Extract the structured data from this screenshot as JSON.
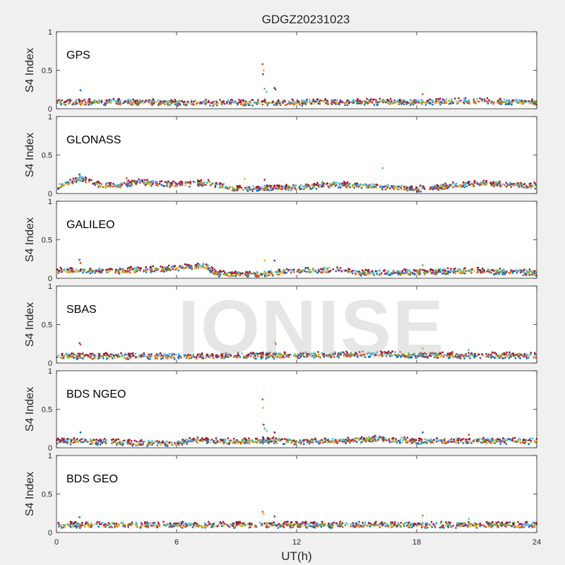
{
  "figure": {
    "title": "GDGZ20231023",
    "xlabel": "UT(h)",
    "ylabel": "S4 Index",
    "watermark": "IONISE"
  },
  "colors": {
    "background": "#f0f0f0",
    "axes_bg": "#ffffff",
    "series": [
      "#0072BD",
      "#D95319",
      "#EDB120",
      "#7E2F8E",
      "#77AC30",
      "#4DBEEE",
      "#A2142F"
    ]
  },
  "chart_data": [
    {
      "type": "scatter",
      "panel_label": "GPS",
      "xlim": [
        0,
        24
      ],
      "ylim": [
        0,
        1
      ],
      "xticks": [
        0,
        6,
        12,
        18,
        24
      ],
      "yticks": [
        0,
        0.5,
        1
      ],
      "baseline": [
        [
          0,
          0.08
        ],
        [
          3,
          0.09
        ],
        [
          6,
          0.08
        ],
        [
          9,
          0.08
        ],
        [
          12,
          0.08
        ],
        [
          15,
          0.09
        ],
        [
          18,
          0.09
        ],
        [
          21,
          0.1
        ],
        [
          24,
          0.08
        ]
      ],
      "spikes": [
        [
          1.2,
          0.24
        ],
        [
          10.3,
          0.58
        ],
        [
          10.35,
          0.5
        ],
        [
          10.32,
          0.45
        ],
        [
          10.4,
          0.26
        ],
        [
          10.5,
          0.22
        ],
        [
          10.9,
          0.27
        ],
        [
          10.95,
          0.25
        ],
        [
          18.3,
          0.19
        ]
      ]
    },
    {
      "type": "scatter",
      "panel_label": "GLONASS",
      "xlim": [
        0,
        24
      ],
      "ylim": [
        0,
        1
      ],
      "xticks": [
        0,
        6,
        12,
        18,
        24
      ],
      "yticks": [
        0,
        0.5,
        1
      ],
      "baseline": [
        [
          0,
          0.08
        ],
        [
          1.2,
          0.2
        ],
        [
          2,
          0.12
        ],
        [
          3,
          0.1
        ],
        [
          4,
          0.15
        ],
        [
          6,
          0.12
        ],
        [
          7.5,
          0.14
        ],
        [
          9,
          0.06
        ],
        [
          12,
          0.08
        ],
        [
          14,
          0.12
        ],
        [
          16,
          0.09
        ],
        [
          18,
          0.06
        ],
        [
          21,
          0.13
        ],
        [
          24,
          0.1
        ]
      ],
      "spikes": [
        [
          1.15,
          0.25
        ],
        [
          3.5,
          0.2
        ],
        [
          9.4,
          0.19
        ],
        [
          10.4,
          0.18
        ],
        [
          13.3,
          0.15
        ],
        [
          16.3,
          0.33
        ]
      ]
    },
    {
      "type": "scatter",
      "panel_label": "GALILEO",
      "xlim": [
        0,
        24
      ],
      "ylim": [
        0,
        1
      ],
      "xticks": [
        0,
        6,
        12,
        18,
        24
      ],
      "yticks": [
        0,
        0.5,
        1
      ],
      "baseline": [
        [
          0,
          0.1
        ],
        [
          1.2,
          0.1
        ],
        [
          3,
          0.1
        ],
        [
          5,
          0.12
        ],
        [
          7.5,
          0.16
        ],
        [
          8,
          0.06
        ],
        [
          10,
          0.05
        ],
        [
          12,
          0.1
        ],
        [
          14,
          0.11
        ],
        [
          15,
          0.07
        ],
        [
          18,
          0.08
        ],
        [
          21,
          0.1
        ],
        [
          24,
          0.07
        ]
      ],
      "spikes": [
        [
          1.15,
          0.24
        ],
        [
          1.2,
          0.2
        ],
        [
          10.4,
          0.23
        ],
        [
          10.9,
          0.23
        ],
        [
          18.3,
          0.17
        ]
      ]
    },
    {
      "type": "scatter",
      "panel_label": "SBAS",
      "xlim": [
        0,
        24
      ],
      "ylim": [
        0,
        1
      ],
      "xticks": [
        0,
        6,
        12,
        18,
        24
      ],
      "yticks": [
        0,
        0.5,
        1
      ],
      "baseline": [
        [
          0,
          0.09
        ],
        [
          6,
          0.09
        ],
        [
          12,
          0.1
        ],
        [
          16,
          0.12
        ],
        [
          18,
          0.1
        ],
        [
          24,
          0.1
        ]
      ],
      "spikes": [
        [
          1.15,
          0.26
        ],
        [
          1.2,
          0.24
        ],
        [
          10.9,
          0.27
        ],
        [
          10.95,
          0.25
        ],
        [
          18.3,
          0.19
        ],
        [
          20.6,
          0.17
        ]
      ]
    },
    {
      "type": "scatter",
      "panel_label": "BDS NGEO",
      "xlim": [
        0,
        24
      ],
      "ylim": [
        0,
        1
      ],
      "xticks": [
        0,
        6,
        12,
        18,
        24
      ],
      "yticks": [
        0,
        0.5,
        1
      ],
      "baseline": [
        [
          0,
          0.09
        ],
        [
          2,
          0.08
        ],
        [
          4,
          0.06
        ],
        [
          6,
          0.06
        ],
        [
          7,
          0.1
        ],
        [
          9,
          0.08
        ],
        [
          10.5,
          0.1
        ],
        [
          12,
          0.08
        ],
        [
          15,
          0.1
        ],
        [
          16,
          0.12
        ],
        [
          18,
          0.09
        ],
        [
          21,
          0.09
        ],
        [
          24,
          0.09
        ]
      ],
      "spikes": [
        [
          1.2,
          0.2
        ],
        [
          10.3,
          0.63
        ],
        [
          10.33,
          0.52
        ],
        [
          10.35,
          0.3
        ],
        [
          10.4,
          0.25
        ],
        [
          10.5,
          0.22
        ],
        [
          10.9,
          0.2
        ],
        [
          18.3,
          0.2
        ],
        [
          20.6,
          0.17
        ]
      ]
    },
    {
      "type": "scatter",
      "panel_label": "BDS GEO",
      "xlim": [
        0,
        24
      ],
      "ylim": [
        0,
        1
      ],
      "xticks": [
        0,
        6,
        12,
        18,
        24
      ],
      "yticks": [
        0,
        0.5,
        1
      ],
      "baseline": [
        [
          0,
          0.1
        ],
        [
          6,
          0.1
        ],
        [
          12,
          0.1
        ],
        [
          18,
          0.1
        ],
        [
          24,
          0.1
        ]
      ],
      "spikes": [
        [
          1.15,
          0.2
        ],
        [
          10.3,
          0.27
        ],
        [
          10.35,
          0.24
        ],
        [
          10.9,
          0.21
        ],
        [
          18.3,
          0.22
        ],
        [
          20.6,
          0.18
        ]
      ]
    }
  ]
}
